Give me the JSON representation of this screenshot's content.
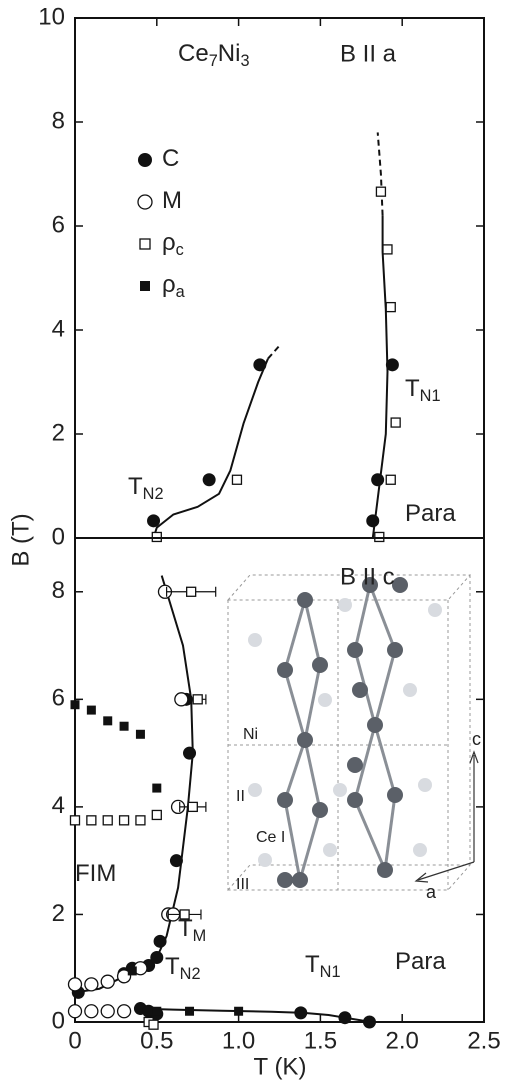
{
  "chart_data": [
    {
      "type": "scatter",
      "title": [
        "Ce",
        "7",
        "Ni",
        "3"
      ],
      "subtitle": "B II a",
      "ylabel": "B (T)",
      "xlim": [
        0,
        2.5
      ],
      "ylim": [
        0,
        10
      ],
      "yticks": [
        0,
        2,
        4,
        6,
        8,
        10
      ],
      "series": [
        {
          "name": [
            "C"
          ],
          "marker": "filled-circle",
          "color": "#111111",
          "x": [
            0.48,
            0.82,
            1.13,
            1.82,
            1.85,
            1.94
          ],
          "values": [
            0.33,
            1.12,
            3.33,
            0.33,
            1.12,
            3.33
          ]
        },
        {
          "name": [
            "M"
          ],
          "marker": "open-circle",
          "color": "#111111",
          "x": [],
          "values": []
        },
        {
          "name": [
            "ρ",
            "c"
          ],
          "marker": "open-square",
          "color": "#111111",
          "x": [
            0.5,
            0.99,
            1.86,
            1.93,
            1.96,
            1.93,
            1.91,
            1.87
          ],
          "values": [
            0.02,
            1.12,
            0.02,
            1.12,
            2.22,
            4.44,
            5.55,
            6.66
          ]
        },
        {
          "name": [
            "ρ",
            "a"
          ],
          "marker": "filled-square",
          "color": "#111111",
          "x": [],
          "values": []
        }
      ],
      "lines": [
        {
          "x": [
            0.48,
            0.5,
            0.6,
            0.75,
            0.88,
            0.95,
            1.03,
            1.12,
            1.18
          ],
          "y": [
            0,
            0.2,
            0.45,
            0.6,
            0.85,
            1.3,
            2.2,
            3.0,
            3.45
          ],
          "dashed": false
        },
        {
          "x": [
            1.18,
            1.25
          ],
          "y": [
            3.45,
            3.7
          ],
          "dashed": true
        },
        {
          "x": [
            1.82,
            1.86,
            1.9,
            1.91,
            1.9,
            1.88,
            1.88
          ],
          "y": [
            0,
            1.0,
            2.0,
            3.2,
            4.4,
            5.5,
            6.2
          ],
          "dashed": false
        },
        {
          "x": [
            1.88,
            1.87,
            1.85
          ],
          "y": [
            6.2,
            7.0,
            7.8
          ],
          "dashed": true
        }
      ],
      "annotations": [
        [
          "T",
          "N1"
        ],
        [
          "T",
          "N2"
        ],
        [
          "Para"
        ]
      ]
    },
    {
      "type": "scatter",
      "subtitle": "B II c",
      "xlabel": "T (K)",
      "xlim": [
        0,
        2.5
      ],
      "ylim": [
        0,
        9
      ],
      "xticks": [
        0,
        0.5,
        {
          "value": 1,
          "label": "1.0"
        },
        1.5,
        {
          "value": 2,
          "label": "2.0"
        },
        2.5
      ],
      "yticks": [
        0,
        2,
        4,
        6,
        8
      ],
      "series": [
        {
          "marker": "filled-circle",
          "color": "#111111",
          "x": [
            0.02,
            0.3,
            0.35,
            0.45,
            0.5,
            0.52,
            0.62,
            0.7,
            0.68,
            0.4,
            0.45,
            0.5,
            1.38,
            1.65,
            1.8
          ],
          "values": [
            0.55,
            0.9,
            1.0,
            1.05,
            1.2,
            1.5,
            3.0,
            5.0,
            6.0,
            0.25,
            0.2,
            0.15,
            0.17,
            0.08,
            0.0
          ]
        },
        {
          "marker": "open-circle",
          "color": "#111111",
          "x": [
            0.0,
            0.1,
            0.2,
            0.3,
            0.4,
            0.0,
            0.1,
            0.2,
            0.3,
            0.57,
            0.6,
            0.63,
            0.65,
            0.55
          ],
          "values": [
            0.7,
            0.7,
            0.75,
            0.85,
            1.0,
            0.2,
            0.2,
            0.2,
            0.2,
            2.0,
            2.0,
            4.0,
            6.0,
            8.0
          ]
        },
        {
          "marker": "open-square",
          "color": "#111111",
          "x": [
            0.71,
            0.75,
            0.72,
            0.67,
            0.0,
            0.1,
            0.2,
            0.3,
            0.4,
            0.5,
            0.45,
            0.48
          ],
          "values": [
            8.0,
            6.0,
            4.0,
            2.0,
            3.75,
            3.75,
            3.75,
            3.75,
            3.75,
            3.85,
            0.0,
            -0.05
          ],
          "xerr": [
            0.15,
            0.05,
            0.08,
            0.1,
            null,
            null,
            null,
            null,
            null,
            null,
            null,
            null
          ]
        },
        {
          "marker": "filled-square",
          "color": "#111111",
          "x": [
            0.0,
            0.1,
            0.2,
            0.3,
            0.4,
            0.5,
            0.35,
            0.45,
            0.5,
            0.7,
            1.0
          ],
          "values": [
            5.9,
            5.8,
            5.6,
            5.5,
            5.35,
            4.35,
            0.95,
            0.2,
            0.2,
            0.2,
            0.2
          ]
        }
      ],
      "lines": [
        {
          "x": [
            0.0,
            0.15,
            0.3,
            0.42,
            0.5,
            0.56,
            0.63,
            0.69,
            0.72,
            0.71,
            0.66,
            0.58,
            0.53
          ],
          "y": [
            0.55,
            0.62,
            0.85,
            1.0,
            1.2,
            1.6,
            2.5,
            4.0,
            5.0,
            6.0,
            7.0,
            7.8,
            8.3
          ],
          "dashed": false
        },
        {
          "x": [
            0.4,
            0.6,
            0.9,
            1.2,
            1.4,
            1.55,
            1.65,
            1.75,
            1.8
          ],
          "y": [
            0.25,
            0.23,
            0.21,
            0.19,
            0.17,
            0.13,
            0.08,
            0.03,
            0.0
          ],
          "dashed": false
        }
      ],
      "annotations": [
        [
          "FIM"
        ],
        [
          "T",
          "M"
        ],
        [
          "T",
          "N2"
        ],
        [
          "T",
          "N1"
        ],
        [
          "Para"
        ]
      ],
      "inset": {
        "labels": [
          "Ni",
          "II",
          "Ce I",
          "III",
          "c",
          "a"
        ]
      }
    }
  ]
}
